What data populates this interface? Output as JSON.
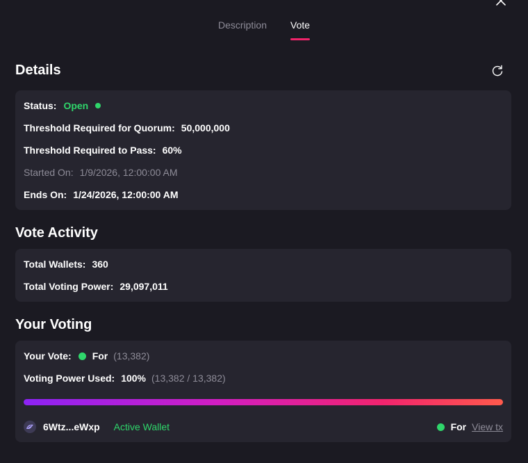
{
  "tabs": [
    {
      "label": "Description"
    },
    {
      "label": "Vote"
    }
  ],
  "details": {
    "title": "Details",
    "status_label": "Status:",
    "status_value": "Open",
    "quorum_label": "Threshold Required for Quorum:",
    "quorum_value": "50,000,000",
    "pass_label": "Threshold Required to Pass:",
    "pass_value": "60%",
    "started_label": "Started On:",
    "started_value": "1/9/2026, 12:00:00 AM",
    "ends_label": "Ends On:",
    "ends_value": "1/24/2026, 12:00:00 AM"
  },
  "activity": {
    "title": "Vote Activity",
    "wallets_label": "Total Wallets:",
    "wallets_value": "360",
    "power_label": "Total Voting Power:",
    "power_value": "29,097,011"
  },
  "your_voting": {
    "title": "Your Voting",
    "vote_label": "Your Vote:",
    "vote_value": "For",
    "vote_amount": "(13,382)",
    "power_used_label": "Voting Power Used:",
    "power_used_value": "100%",
    "power_used_detail": "(13,382 / 13,382)",
    "power_used_fraction": 1.0,
    "wallet_address": "6Wtz...eWxp",
    "wallet_status": "Active Wallet",
    "wallet_vote": "For",
    "view_tx_label": "View tx"
  },
  "colors": {
    "accent": "#f0246a",
    "success": "#2fd66b",
    "card": "#26252f",
    "background": "#1b1a22"
  }
}
